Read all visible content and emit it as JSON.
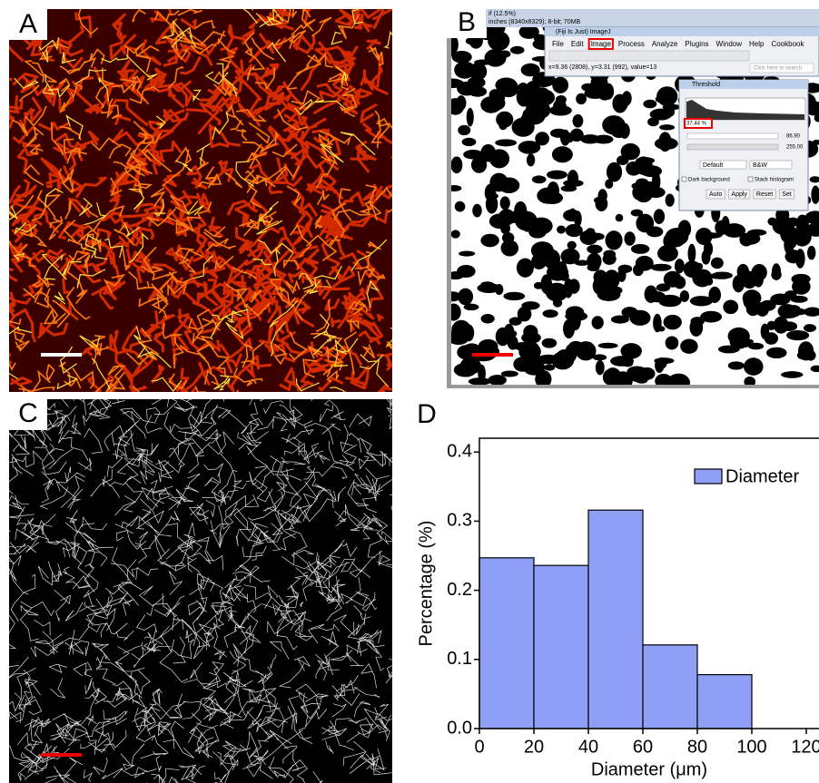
{
  "panels": {
    "a": {
      "label": "A"
    },
    "b": {
      "label": "B",
      "window_title": "if (12.5%)",
      "window_info": "inches (8340x8329); 8-bit; 70MB",
      "fiji": {
        "title": "(Fiji Is Just) ImageJ",
        "menu": [
          "File",
          "Edit",
          "Image",
          "Process",
          "Analyze",
          "Plugins",
          "Window",
          "Help",
          "Cookbook"
        ],
        "status": "x=9.36 (2808), y=3.31 (992), value=13",
        "search": "Click here to search"
      },
      "threshold": {
        "title": "Threshold",
        "percent": "37.44 %",
        "min": "86.90",
        "max": "255.00",
        "method": "Default",
        "mode": "B&W",
        "dark_background": "Dark background",
        "stack_histogram": "Stack histogram",
        "buttons": [
          "Auto",
          "Apply",
          "Reset",
          "Set"
        ]
      }
    },
    "c": {
      "label": "C"
    },
    "d": {
      "label": "D"
    }
  },
  "chart_data": {
    "type": "histogram",
    "bins": [
      0,
      20,
      40,
      60,
      80,
      100
    ],
    "values": [
      0.247,
      0.236,
      0.316,
      0.121,
      0.078
    ],
    "color": "#8f9ff5",
    "series_name": "Diameter",
    "x_label": "Diameter (μm)",
    "y_label": "Percentage (%)",
    "xlim": [
      0,
      124
    ],
    "ylim": [
      0,
      0.42
    ],
    "xticks": [
      0,
      20,
      40,
      60,
      80,
      100,
      120
    ],
    "yticks": [
      {
        "value": 0,
        "label": "0.0"
      },
      0.1,
      0.2,
      0.3,
      0.4
    ],
    "legend": "upper right"
  }
}
